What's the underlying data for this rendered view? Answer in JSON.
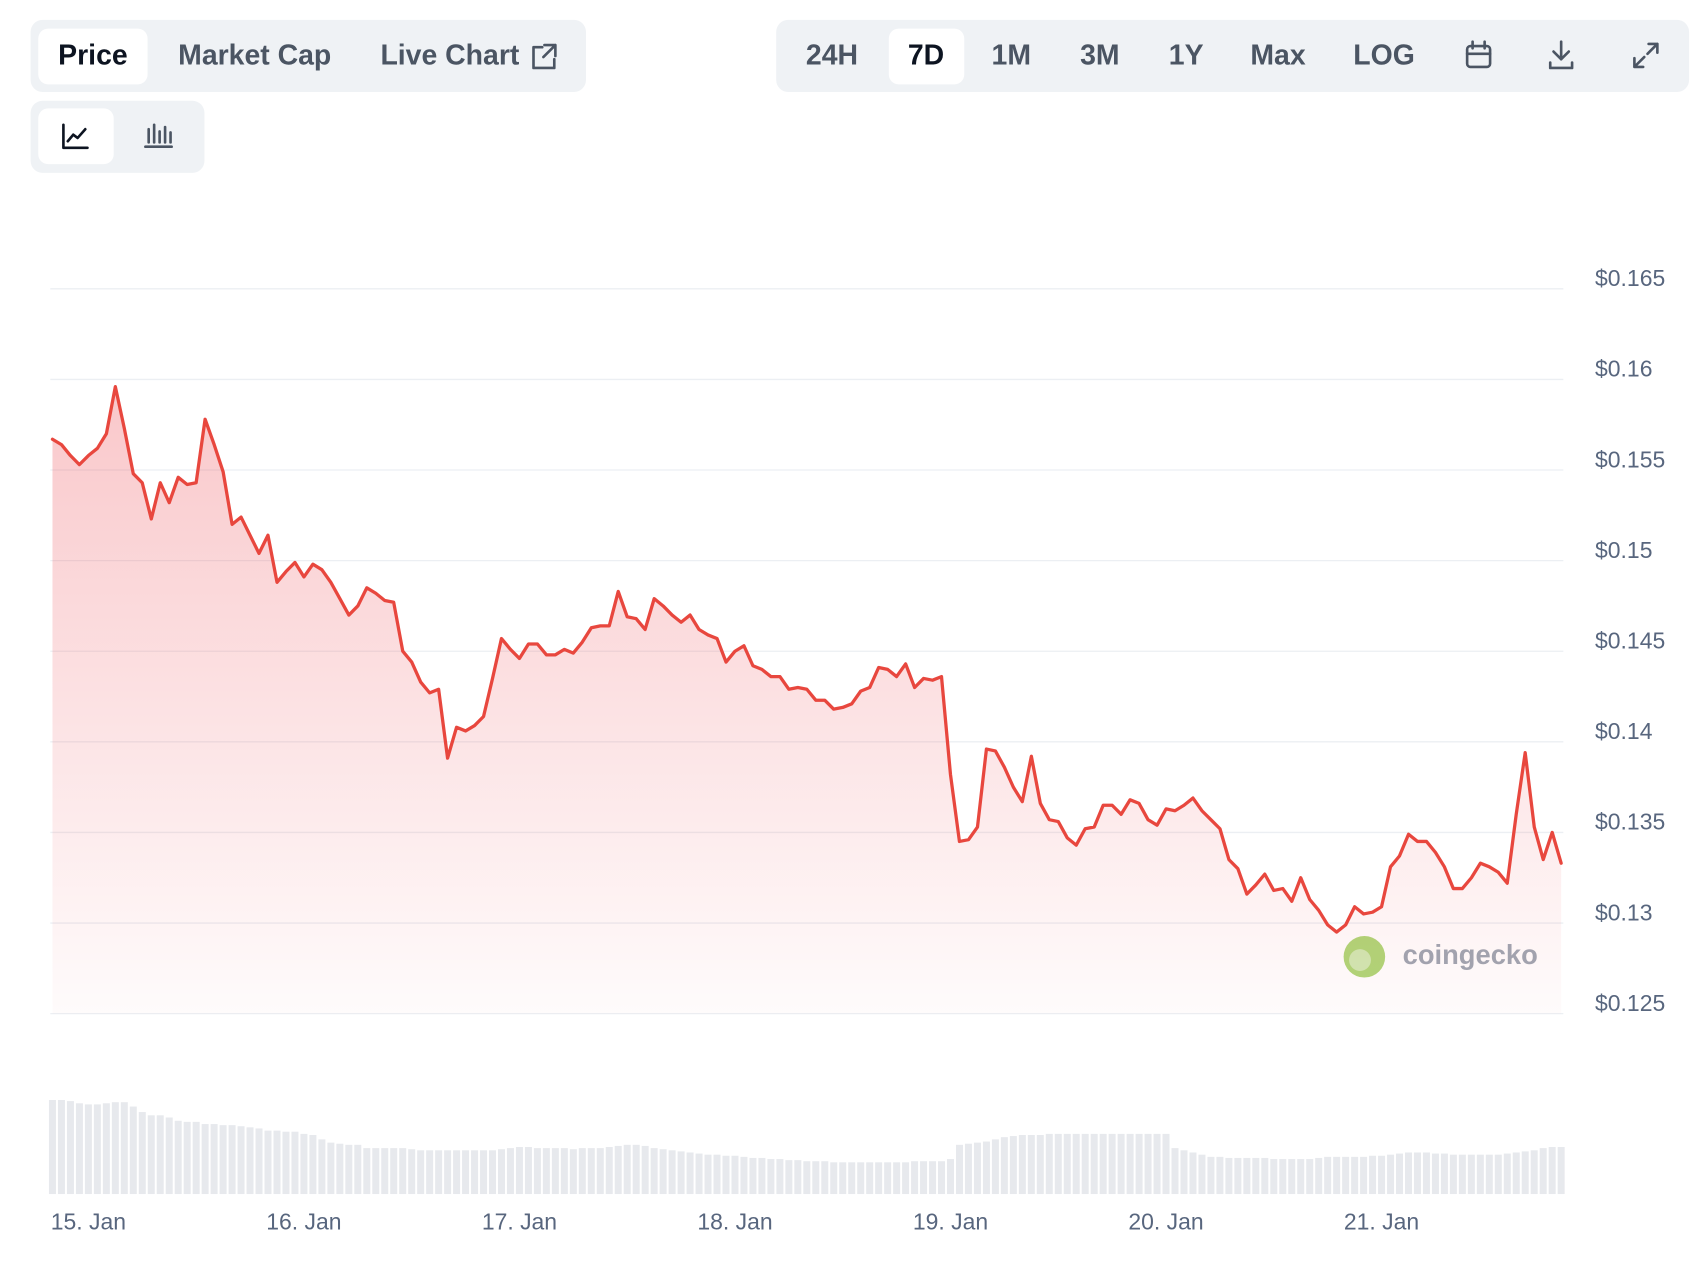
{
  "ui": {
    "tabs": [
      "Price",
      "Market Cap",
      "Live Chart"
    ],
    "ranges": [
      "24H",
      "7D",
      "1M",
      "3M",
      "1Y",
      "Max",
      "LOG"
    ]
  },
  "chart_data": {
    "type": "line",
    "color": "#e8473e",
    "grid": true,
    "watermark": "coingecko",
    "categories": [
      null,
      null,
      null,
      null,
      "15. Jan",
      null,
      null,
      null,
      null,
      null,
      null,
      null,
      null,
      null,
      null,
      null,
      null,
      null,
      null,
      null,
      null,
      null,
      null,
      null,
      null,
      null,
      null,
      null,
      "16. Jan",
      null,
      null,
      null,
      null,
      null,
      null,
      null,
      null,
      null,
      null,
      null,
      null,
      null,
      null,
      null,
      null,
      null,
      null,
      null,
      null,
      null,
      null,
      null,
      "17. Jan",
      null,
      null,
      null,
      null,
      null,
      null,
      null,
      null,
      null,
      null,
      null,
      null,
      null,
      null,
      null,
      null,
      null,
      null,
      null,
      null,
      null,
      null,
      null,
      "18. Jan",
      null,
      null,
      null,
      null,
      null,
      null,
      null,
      null,
      null,
      null,
      null,
      null,
      null,
      null,
      null,
      null,
      null,
      null,
      null,
      null,
      null,
      null,
      null,
      "19. Jan",
      null,
      null,
      null,
      null,
      null,
      null,
      null,
      null,
      null,
      null,
      null,
      null,
      null,
      null,
      null,
      null,
      null,
      null,
      null,
      null,
      null,
      null,
      null,
      "20. Jan",
      null,
      null,
      null,
      null,
      null,
      null,
      null,
      null,
      null,
      null,
      null,
      null,
      null,
      null,
      null,
      null,
      null,
      null,
      null,
      null,
      null,
      null,
      null,
      "21. Jan",
      null,
      null,
      null,
      null,
      null,
      null,
      null,
      null,
      null,
      null,
      null,
      null,
      null,
      null,
      null,
      null,
      null,
      null,
      null,
      null
    ],
    "values": [
      0.1567,
      0.1564,
      0.1558,
      0.1553,
      0.1558,
      0.1562,
      0.157,
      0.1596,
      0.1573,
      0.1548,
      0.1543,
      0.1523,
      0.1543,
      0.1532,
      0.1546,
      0.1542,
      0.1543,
      0.1578,
      0.1564,
      0.1549,
      0.152,
      0.1524,
      0.1514,
      0.1504,
      0.1514,
      0.1488,
      0.1494,
      0.1499,
      0.1491,
      0.1498,
      0.1495,
      0.1488,
      0.1479,
      0.147,
      0.1475,
      0.1485,
      0.1482,
      0.1478,
      0.1477,
      0.145,
      0.1444,
      0.1433,
      0.1427,
      0.1429,
      0.1391,
      0.1408,
      0.1406,
      0.1409,
      0.1414,
      0.1435,
      0.1457,
      0.1451,
      0.1446,
      0.1454,
      0.1454,
      0.1448,
      0.1448,
      0.1451,
      0.1449,
      0.1455,
      0.1463,
      0.1464,
      0.1464,
      0.1483,
      0.1469,
      0.1468,
      0.1462,
      0.1479,
      0.1475,
      0.147,
      0.1466,
      0.147,
      0.1462,
      0.1459,
      0.1457,
      0.1444,
      0.145,
      0.1453,
      0.1442,
      0.144,
      0.1436,
      0.1436,
      0.1429,
      0.143,
      0.1429,
      0.1423,
      0.1423,
      0.1418,
      0.1419,
      0.1421,
      0.1428,
      0.143,
      0.1441,
      0.144,
      0.1436,
      0.1443,
      0.143,
      0.1435,
      0.1434,
      0.1436,
      0.1382,
      0.1345,
      0.1346,
      0.1353,
      0.1396,
      0.1395,
      0.1386,
      0.1375,
      0.1367,
      0.1392,
      0.1366,
      0.1357,
      0.1356,
      0.1347,
      0.1343,
      0.1352,
      0.1353,
      0.1365,
      0.1365,
      0.136,
      0.1368,
      0.1366,
      0.1357,
      0.1354,
      0.1363,
      0.1362,
      0.1365,
      0.1369,
      0.1362,
      0.1357,
      0.1352,
      0.1335,
      0.133,
      0.1316,
      0.1321,
      0.1327,
      0.1318,
      0.1319,
      0.1312,
      0.1325,
      0.1313,
      0.1307,
      0.1299,
      0.1295,
      0.1299,
      0.1309,
      0.1305,
      0.1306,
      0.1309,
      0.1331,
      0.1337,
      0.1349,
      0.1345,
      0.1345,
      0.1339,
      0.1331,
      0.1319,
      0.1319,
      0.1325,
      0.1333,
      0.1331,
      0.1328,
      0.1322,
      0.136,
      0.1394,
      0.1353,
      0.1335,
      0.135,
      0.1333
    ],
    "ylim": [
      0.125,
      0.165
    ],
    "yticks": [
      {
        "value": 0.125,
        "label": "$0.125"
      },
      {
        "value": 0.13,
        "label": "$0.13"
      },
      {
        "value": 0.135,
        "label": "$0.135"
      },
      {
        "value": 0.14,
        "label": "$0.14"
      },
      {
        "value": 0.145,
        "label": "$0.145"
      },
      {
        "value": 0.15,
        "label": "$0.15"
      },
      {
        "value": 0.155,
        "label": "$0.155"
      },
      {
        "value": 0.16,
        "label": "$0.16"
      },
      {
        "value": 0.165,
        "label": "$0.165"
      }
    ],
    "volume": {
      "type": "bar",
      "color": "#e7e9ed",
      "values": [
        86,
        86,
        85,
        83,
        82,
        82,
        83,
        84,
        84,
        80,
        75,
        72,
        72,
        70,
        67,
        66,
        66,
        64,
        64,
        63,
        63,
        62,
        61,
        60,
        58,
        58,
        57,
        57,
        55,
        54,
        50,
        47,
        46,
        45,
        45,
        42,
        42,
        42,
        42,
        42,
        41,
        40,
        40,
        40,
        40,
        40,
        40,
        40,
        40,
        40,
        41,
        42,
        43,
        43,
        42,
        42,
        42,
        42,
        41,
        42,
        42,
        42,
        43,
        44,
        45,
        45,
        44,
        42,
        41,
        40,
        39,
        38,
        37,
        36,
        36,
        35,
        35,
        34,
        33,
        33,
        32,
        32,
        31,
        31,
        30,
        30,
        30,
        29,
        29,
        29,
        29,
        29,
        29,
        29,
        29,
        29,
        30,
        30,
        30,
        30,
        32,
        45,
        46,
        47,
        48,
        50,
        52,
        53,
        54,
        54,
        54,
        55,
        55,
        55,
        55,
        55,
        55,
        55,
        55,
        55,
        55,
        55,
        55,
        55,
        55,
        42,
        40,
        38,
        36,
        34,
        34,
        33,
        33,
        33,
        33,
        33,
        32,
        32,
        32,
        32,
        32,
        33,
        34,
        34,
        34,
        34,
        34,
        35,
        35,
        36,
        37,
        38,
        38,
        38,
        37,
        37,
        36,
        36,
        36,
        36,
        36,
        36,
        37,
        38,
        39,
        40,
        42,
        43,
        43
      ]
    }
  }
}
